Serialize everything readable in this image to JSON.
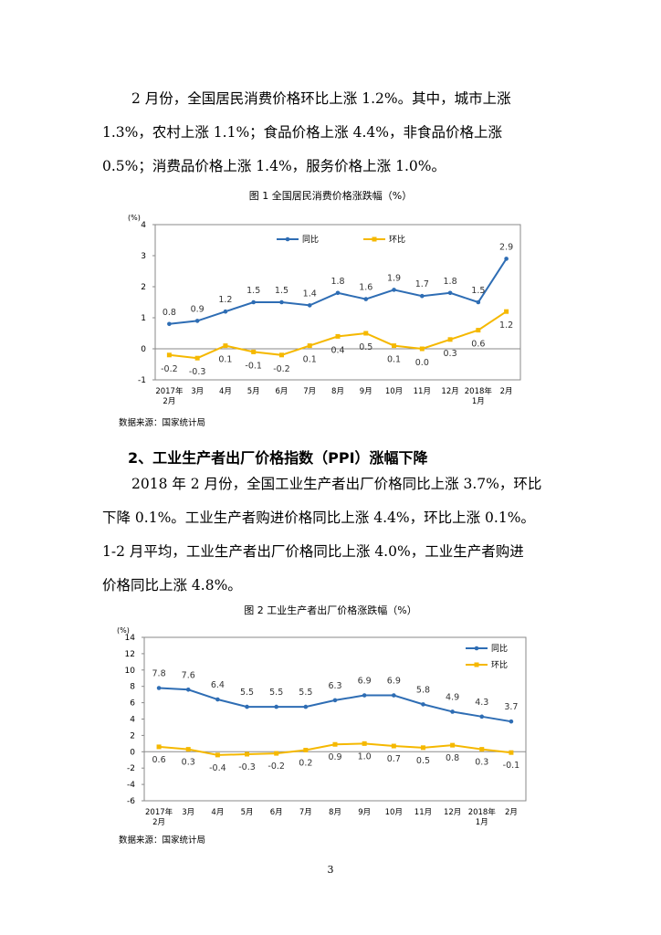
{
  "section1": {
    "para_lines": [
      "2 月份，全国居民消费价格环比上涨 1.2%。其中，城市上涨",
      "1.3%，农村上涨 1.1%；食品价格上涨 4.4%，非食品价格上涨",
      "0.5%；消费品价格上涨 1.4%，服务价格上涨 1.0%。"
    ]
  },
  "section2": {
    "heading": "2、工业生产者出厂价格指数（PPI）涨幅下降",
    "para_lines": [
      "2018 年 2 月份，全国工业生产者出厂价格同比上涨 3.7%，环比",
      "下降 0.1%。工业生产者购进价格同比上涨 4.4%，环比上涨 0.1%。",
      "1-2 月平均，工业生产者出厂价格同比上涨 4.0%，工业生产者购进",
      "价格同比上涨 4.8%。"
    ]
  },
  "chart_data": [
    {
      "type": "line",
      "title": "图 1  全国居民消费价格涨跌幅（%）",
      "unit_label": "(%)",
      "categories": [
        [
          "2017年",
          "2月"
        ],
        [
          "3月"
        ],
        [
          "4月"
        ],
        [
          "5月"
        ],
        [
          "6月"
        ],
        [
          "7月"
        ],
        [
          "8月"
        ],
        [
          "9月"
        ],
        [
          "10月"
        ],
        [
          "11月"
        ],
        [
          "12月"
        ],
        [
          "2018年",
          "1月"
        ],
        [
          "2月"
        ]
      ],
      "ylim": [
        -1,
        4
      ],
      "yticks": [
        -1,
        0,
        1,
        2,
        3,
        4
      ],
      "legend_position": "top-center",
      "series": [
        {
          "name": "同比",
          "color": "#2E6DB4",
          "values": [
            0.8,
            0.9,
            1.2,
            1.5,
            1.5,
            1.4,
            1.8,
            1.6,
            1.9,
            1.7,
            1.8,
            1.5,
            2.9
          ],
          "labels": [
            "0.8",
            "0.9",
            "1.2",
            "1.5",
            "1.5",
            "1.4",
            "1.8",
            "1.6",
            "1.9",
            "1.7",
            "1.8",
            "1.5",
            "2.9"
          ]
        },
        {
          "name": "环比",
          "color": "#F5B800",
          "values": [
            -0.2,
            -0.3,
            0.1,
            -0.1,
            -0.2,
            0.1,
            0.4,
            0.5,
            0.1,
            0.0,
            0.3,
            0.6,
            1.2
          ],
          "labels": [
            "-0.2",
            "-0.3",
            "0.1",
            "-0.1",
            "-0.2",
            "0.1",
            "0.4",
            "0.5",
            "0.1",
            "0.0",
            "0.3",
            "0.6",
            "1.2"
          ]
        }
      ],
      "source": "数据来源：国家统计局"
    },
    {
      "type": "line",
      "title": "图 2  工业生产者出厂价格涨跌幅（%）",
      "unit_label": "(%)",
      "categories": [
        [
          "2017年",
          "2月"
        ],
        [
          "3月"
        ],
        [
          "4月"
        ],
        [
          "5月"
        ],
        [
          "6月"
        ],
        [
          "7月"
        ],
        [
          "8月"
        ],
        [
          "9月"
        ],
        [
          "10月"
        ],
        [
          "11月"
        ],
        [
          "12月"
        ],
        [
          "2018年",
          "1月"
        ],
        [
          "2月"
        ]
      ],
      "ylim": [
        -6,
        14
      ],
      "yticks": [
        -6,
        -4,
        -2,
        0,
        2,
        4,
        6,
        8,
        10,
        12,
        14
      ],
      "legend_position": "top-right",
      "series": [
        {
          "name": "同比",
          "color": "#2E6DB4",
          "values": [
            7.8,
            7.6,
            6.4,
            5.5,
            5.5,
            5.5,
            6.3,
            6.9,
            6.9,
            5.8,
            4.9,
            4.3,
            3.7
          ],
          "labels": [
            "7.8",
            "7.6",
            "6.4",
            "5.5",
            "5.5",
            "5.5",
            "6.3",
            "6.9",
            "6.9",
            "5.8",
            "4.9",
            "4.3",
            "3.7"
          ]
        },
        {
          "name": "环比",
          "color": "#F5B800",
          "values": [
            0.6,
            0.3,
            -0.4,
            -0.3,
            -0.2,
            0.2,
            0.9,
            1.0,
            0.7,
            0.5,
            0.8,
            0.3,
            -0.1
          ],
          "labels": [
            "0.6",
            "0.3",
            "-0.4",
            "-0.3",
            "-0.2",
            "0.2",
            "0.9",
            "1.0",
            "0.7",
            "0.5",
            "0.8",
            "0.3",
            "-0.1"
          ]
        }
      ],
      "source": "数据来源：国家统计局"
    }
  ],
  "page_number": "3"
}
